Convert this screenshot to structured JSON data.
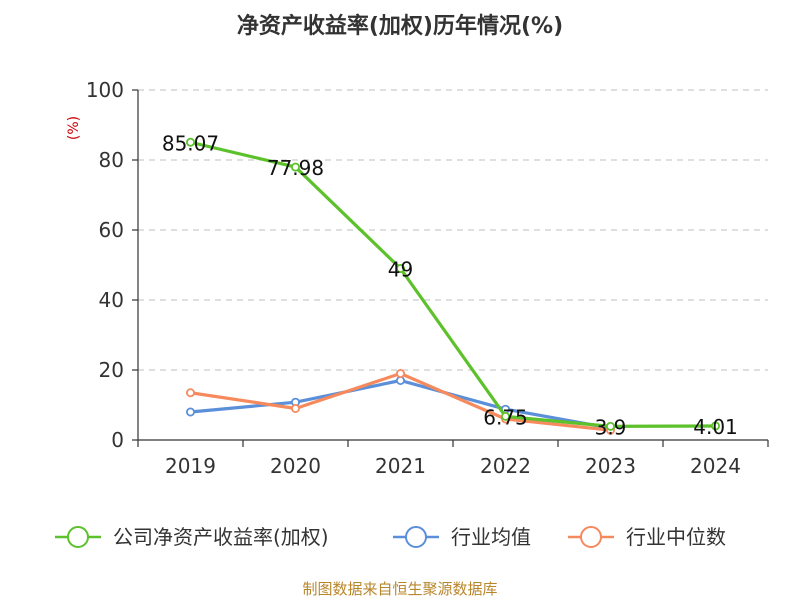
{
  "title": "净资产收益率(加权)历年情况(%)",
  "source": "制图数据来自恒生聚源数据库",
  "colors": {
    "background": "#ffffff",
    "grid": "#cccccc",
    "axis": "#333333",
    "unit_label": "#cc0000",
    "source_text": "#b8862b"
  },
  "chart_data": {
    "type": "line",
    "title": "净资产收益率(加权)历年情况(%)",
    "ylabel": "(%)",
    "xlabel": "",
    "ylim": [
      0,
      100
    ],
    "yticks": [
      0,
      20,
      40,
      60,
      80,
      100
    ],
    "grid": true,
    "legend_position": "bottom",
    "categories": [
      "2019",
      "2020",
      "2021",
      "2022",
      "2023",
      "2024"
    ],
    "series": [
      {
        "name": "公司净资产收益率(加权)",
        "color": "#5cc12a",
        "values": [
          85.07,
          77.98,
          49,
          6.75,
          3.9,
          4.01
        ],
        "data_labels": [
          "85.07",
          "77.98",
          "49",
          "6.75",
          "3.9",
          "4.01"
        ]
      },
      {
        "name": "行业均值",
        "color": "#5b8fd9",
        "values": [
          8,
          10.8,
          17,
          8.8,
          3.4,
          null
        ]
      },
      {
        "name": "行业中位数",
        "color": "#f68a5d",
        "values": [
          13.5,
          9,
          19,
          6,
          2.8,
          null
        ]
      }
    ]
  }
}
